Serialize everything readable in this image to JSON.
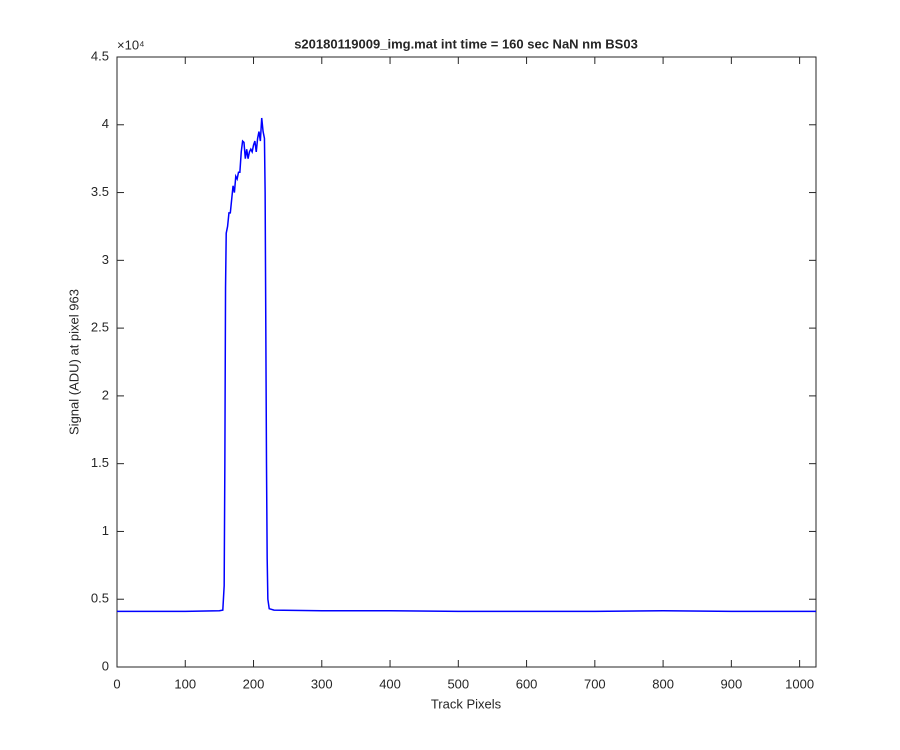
{
  "chart_data": {
    "type": "line",
    "title": "s20180119009_img.mat int time = 160 sec  NaN nm BS03",
    "x_label": "Track Pixels",
    "y_label": "Signal (ADU) at pixel 963",
    "y_multiplier": "×10⁴",
    "xlim": [
      0,
      1024
    ],
    "xticks": [
      0,
      100,
      200,
      300,
      400,
      500,
      600,
      700,
      800,
      900,
      1000
    ],
    "ylim": [
      0,
      4.5
    ],
    "yticks": [
      0,
      0.5,
      1,
      1.5,
      2,
      2.5,
      3,
      3.5,
      4,
      4.5
    ],
    "x": [
      0,
      50,
      100,
      150,
      155,
      157,
      158,
      159,
      160,
      162,
      164,
      166,
      168,
      170,
      172,
      174,
      176,
      178,
      180,
      182,
      184,
      186,
      188,
      190,
      192,
      194,
      196,
      198,
      200,
      202,
      204,
      206,
      208,
      210,
      212,
      214,
      216,
      217,
      218,
      219,
      220,
      221,
      223,
      230,
      300,
      400,
      500,
      600,
      700,
      800,
      900,
      1024
    ],
    "series": [
      {
        "name": "signal",
        "color": "#0000ff",
        "values": [
          0.41,
          0.41,
          0.41,
          0.415,
          0.42,
          0.6,
          1.5,
          2.8,
          3.2,
          3.25,
          3.35,
          3.35,
          3.45,
          3.55,
          3.5,
          3.62,
          3.6,
          3.65,
          3.65,
          3.8,
          3.88,
          3.87,
          3.75,
          3.82,
          3.75,
          3.8,
          3.82,
          3.8,
          3.85,
          3.88,
          3.8,
          3.9,
          3.95,
          3.88,
          4.05,
          3.95,
          3.9,
          3.5,
          2.5,
          1.5,
          0.8,
          0.5,
          0.43,
          0.42,
          0.415,
          0.415,
          0.41,
          0.41,
          0.41,
          0.415,
          0.41,
          0.41
        ]
      }
    ]
  }
}
